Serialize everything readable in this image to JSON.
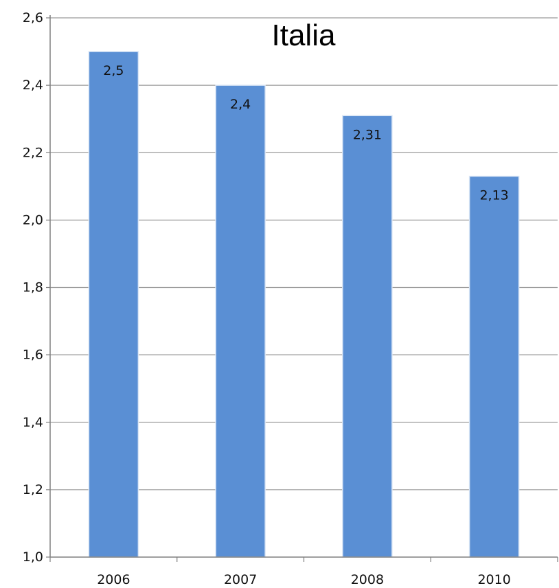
{
  "chart_data": {
    "type": "bar",
    "title": "Italia",
    "categories": [
      "2006",
      "2007",
      "2008",
      "2010"
    ],
    "values": [
      2.5,
      2.4,
      2.31,
      2.13
    ],
    "value_labels": [
      "2,5",
      "2,4",
      "2,31",
      "2,13"
    ],
    "ylim": [
      1.0,
      2.6
    ],
    "yticks": [
      1.0,
      1.2,
      1.4,
      1.6,
      1.8,
      2.0,
      2.2,
      2.4,
      2.6
    ],
    "ytick_labels": [
      "1,0",
      "1,2",
      "1,4",
      "1,6",
      "1,8",
      "2,0",
      "2,2",
      "2,4",
      "2,6"
    ],
    "grid": true,
    "legend": "none",
    "colors": {
      "bar": "#5a8fd4",
      "bar_edge": "#d9e5f5",
      "grid": "#9a9a9a",
      "axis": "#7f7f7f"
    }
  }
}
